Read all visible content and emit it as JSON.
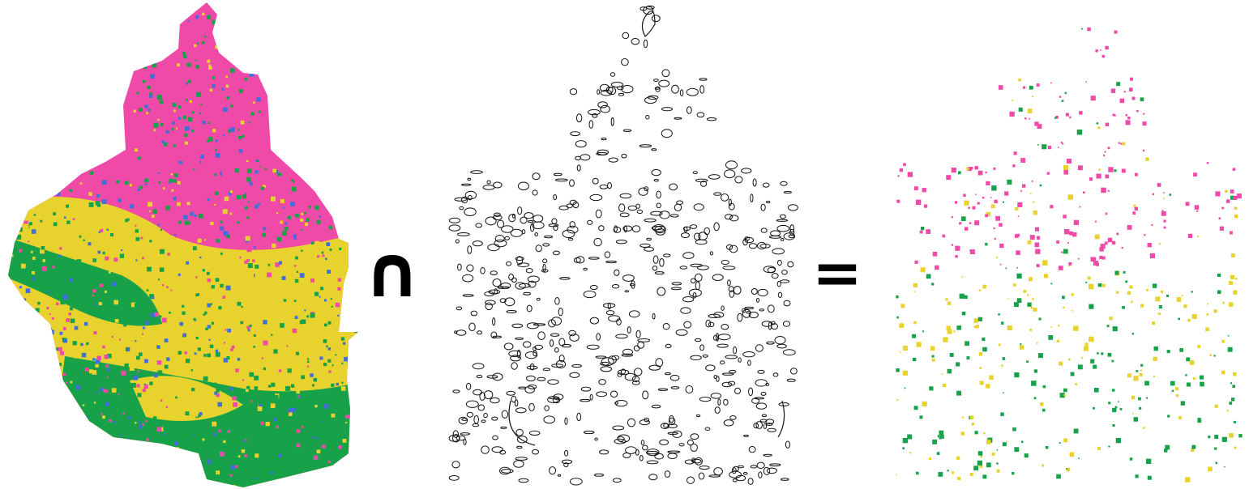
{
  "operators": {
    "intersection": "∩",
    "equals": "="
  },
  "colors": {
    "pink": "#f04aa8",
    "yellow": "#e8d22d",
    "green": "#17a24a",
    "blue": "#3f6fd8",
    "outline": "#111111"
  },
  "panels": {
    "left": {
      "description": "classified-map"
    },
    "middle": {
      "description": "polygon-outlines"
    },
    "right": {
      "description": "intersection-result"
    }
  }
}
